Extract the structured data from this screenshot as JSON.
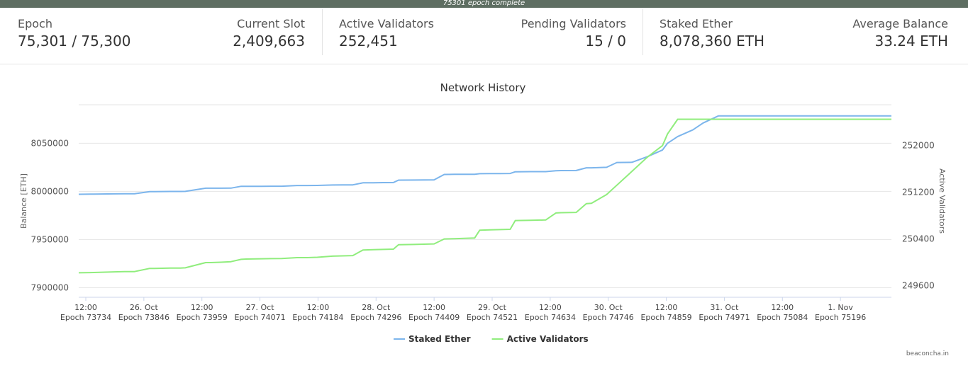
{
  "top_bar": {
    "message": "75301 epoch complete"
  },
  "stats": {
    "epoch": {
      "label": "Epoch",
      "value": "75,301 / 75,300"
    },
    "current_slot": {
      "label": "Current Slot",
      "value": "2,409,663"
    },
    "active_validators": {
      "label": "Active Validators",
      "value": "252,451"
    },
    "pending_validators": {
      "label": "Pending Validators",
      "value": "15 / 0"
    },
    "staked_ether": {
      "label": "Staked Ether",
      "value": "8,078,360 ETH"
    },
    "average_balance": {
      "label": "Average Balance",
      "value": "33.24 ETH"
    }
  },
  "chart_data": {
    "type": "line",
    "title": "Network History",
    "ylabel": "Balance [ETH]",
    "y2label": "Active Validators",
    "ylim": [
      7890000,
      8090000
    ],
    "y2lim": [
      249400,
      252700
    ],
    "yticks": [
      "8050000",
      "8000000",
      "7950000",
      "7900000"
    ],
    "y2ticks": [
      "252000",
      "251200",
      "250400",
      "249600"
    ],
    "x_ticks": [
      {
        "date": "12:00",
        "epoch": "Epoch 73734"
      },
      {
        "date": "26. Oct",
        "epoch": "Epoch 73846"
      },
      {
        "date": "12:00",
        "epoch": "Epoch 73959"
      },
      {
        "date": "27. Oct",
        "epoch": "Epoch 74071"
      },
      {
        "date": "12:00",
        "epoch": "Epoch 74184"
      },
      {
        "date": "28. Oct",
        "epoch": "Epoch 74296"
      },
      {
        "date": "12:00",
        "epoch": "Epoch 74409"
      },
      {
        "date": "29. Oct",
        "epoch": "Epoch 74521"
      },
      {
        "date": "12:00",
        "epoch": "Epoch 74634"
      },
      {
        "date": "30. Oct",
        "epoch": "Epoch 74746"
      },
      {
        "date": "12:00",
        "epoch": "Epoch 74859"
      },
      {
        "date": "31. Oct",
        "epoch": "Epoch 74971"
      },
      {
        "date": "12:00",
        "epoch": "Epoch 75084"
      },
      {
        "date": "1. Nov",
        "epoch": "Epoch 75196"
      }
    ],
    "x": [
      73700,
      73730,
      73770,
      73790,
      73810,
      73840,
      73850,
      73880,
      73900,
      73910,
      73950,
      73960,
      73980,
      74000,
      74020,
      74030,
      74060,
      74100,
      74130,
      74150,
      74170,
      74200,
      74220,
      74240,
      74260,
      74280,
      74300,
      74320,
      74330,
      74360,
      74380,
      74400,
      74420,
      74440,
      74460,
      74480,
      74490,
      74510,
      74530,
      74550,
      74560,
      74590,
      74620,
      74640,
      74650,
      74680,
      74700,
      74710,
      74740,
      74760,
      74790,
      74820,
      74850,
      74860,
      74880,
      74910,
      74930,
      74960,
      75000,
      75100,
      75200,
      75301
    ],
    "series": [
      {
        "name": "Staked Ether",
        "color": "#7cb5ec",
        "values": [
          7997000,
          7997200,
          7997400,
          7997600,
          7997600,
          7999800,
          7999800,
          7999900,
          7999900,
          8000000,
          8003300,
          8003300,
          8003300,
          8003400,
          8005300,
          8005300,
          8005300,
          8005400,
          8006100,
          8006100,
          8006200,
          8006600,
          8006700,
          8006800,
          8008900,
          8009000,
          8009100,
          8009200,
          8011700,
          8011800,
          8011900,
          8012000,
          8017600,
          8017700,
          8017800,
          8017800,
          8018400,
          8018500,
          8018500,
          8018600,
          8020400,
          8020500,
          8020500,
          8021500,
          8021600,
          8021700,
          8024500,
          8024500,
          8025000,
          8030000,
          8030200,
          8036000,
          8043000,
          8050000,
          8057000,
          8064000,
          8071000,
          8078360,
          8078360,
          8078360,
          8078360,
          8078360
        ]
      },
      {
        "name": "Active Validators",
        "color": "#90ed7d",
        "values": [
          249820,
          249825,
          249835,
          249840,
          249840,
          249895,
          249895,
          249900,
          249900,
          249905,
          249995,
          249995,
          250000,
          250010,
          250050,
          250055,
          250060,
          250065,
          250080,
          250080,
          250085,
          250105,
          250110,
          250115,
          250210,
          250215,
          250220,
          250225,
          250300,
          250305,
          250310,
          250315,
          250400,
          250405,
          250410,
          250415,
          250550,
          250555,
          250560,
          250565,
          250715,
          250720,
          250725,
          250845,
          250850,
          250855,
          251005,
          251010,
          251160,
          251320,
          251560,
          251800,
          252000,
          252200,
          252451,
          252451,
          252451,
          252451,
          252451,
          252451,
          252451,
          252451
        ]
      }
    ],
    "legend_position": "bottom-center",
    "grid": true
  },
  "watermark": "beaconcha.in"
}
